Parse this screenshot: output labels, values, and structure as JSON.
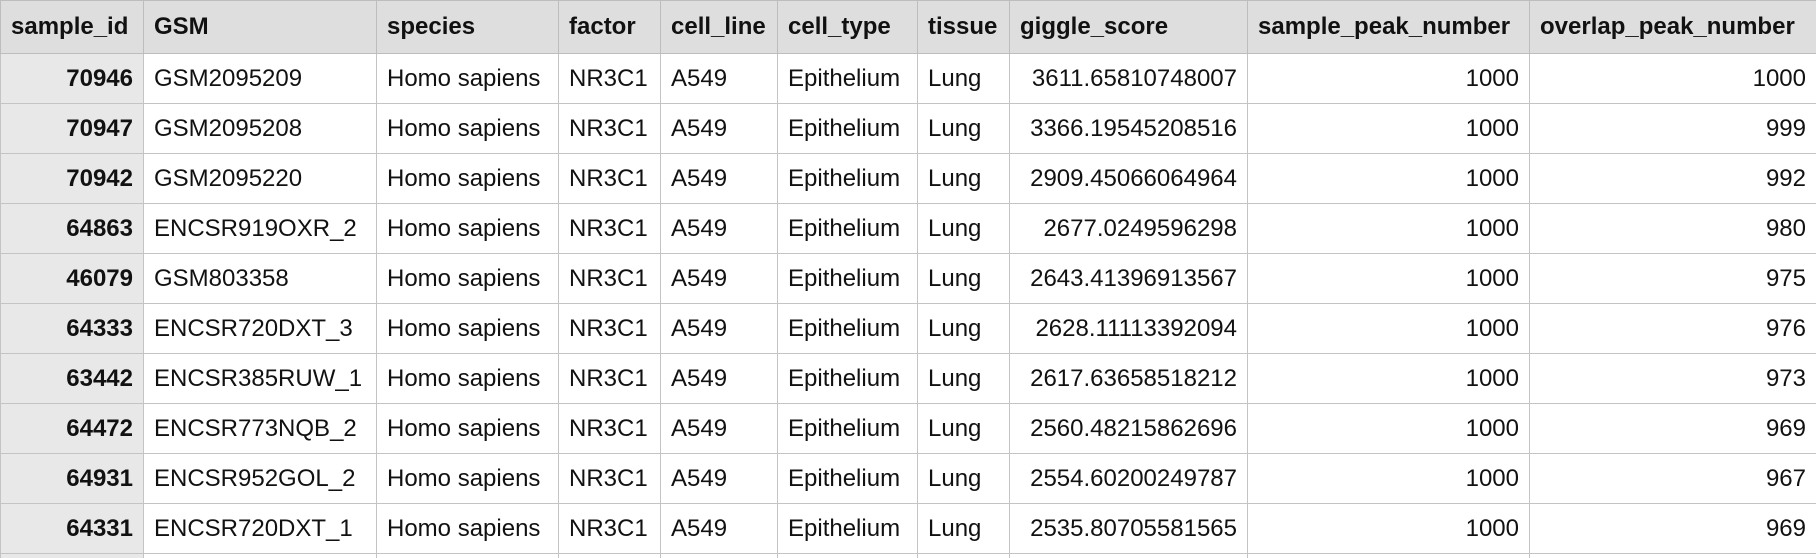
{
  "table": {
    "columns": [
      "sample_id",
      "GSM",
      "species",
      "factor",
      "cell_line",
      "cell_type",
      "tissue",
      "giggle_score",
      "sample_peak_number",
      "overlap_peak_number"
    ],
    "rows": [
      [
        "70946",
        "GSM2095209",
        "Homo sapiens",
        "NR3C1",
        "A549",
        "Epithelium",
        "Lung",
        "3611.65810748007",
        "1000",
        "1000"
      ],
      [
        "70947",
        "GSM2095208",
        "Homo sapiens",
        "NR3C1",
        "A549",
        "Epithelium",
        "Lung",
        "3366.19545208516",
        "1000",
        "999"
      ],
      [
        "70942",
        "GSM2095220",
        "Homo sapiens",
        "NR3C1",
        "A549",
        "Epithelium",
        "Lung",
        "2909.45066064964",
        "1000",
        "992"
      ],
      [
        "64863",
        "ENCSR919OXR_2",
        "Homo sapiens",
        "NR3C1",
        "A549",
        "Epithelium",
        "Lung",
        "2677.0249596298",
        "1000",
        "980"
      ],
      [
        "46079",
        "GSM803358",
        "Homo sapiens",
        "NR3C1",
        "A549",
        "Epithelium",
        "Lung",
        "2643.41396913567",
        "1000",
        "975"
      ],
      [
        "64333",
        "ENCSR720DXT_3",
        "Homo sapiens",
        "NR3C1",
        "A549",
        "Epithelium",
        "Lung",
        "2628.11113392094",
        "1000",
        "976"
      ],
      [
        "63442",
        "ENCSR385RUW_1",
        "Homo sapiens",
        "NR3C1",
        "A549",
        "Epithelium",
        "Lung",
        "2617.63658518212",
        "1000",
        "973"
      ],
      [
        "64472",
        "ENCSR773NQB_2",
        "Homo sapiens",
        "NR3C1",
        "A549",
        "Epithelium",
        "Lung",
        "2560.48215862696",
        "1000",
        "969"
      ],
      [
        "64931",
        "ENCSR952GOL_2",
        "Homo sapiens",
        "NR3C1",
        "A549",
        "Epithelium",
        "Lung",
        "2554.60200249787",
        "1000",
        "967"
      ],
      [
        "64331",
        "ENCSR720DXT_1",
        "Homo sapiens",
        "NR3C1",
        "A549",
        "Epithelium",
        "Lung",
        "2535.80705581565",
        "1000",
        "969"
      ]
    ]
  }
}
